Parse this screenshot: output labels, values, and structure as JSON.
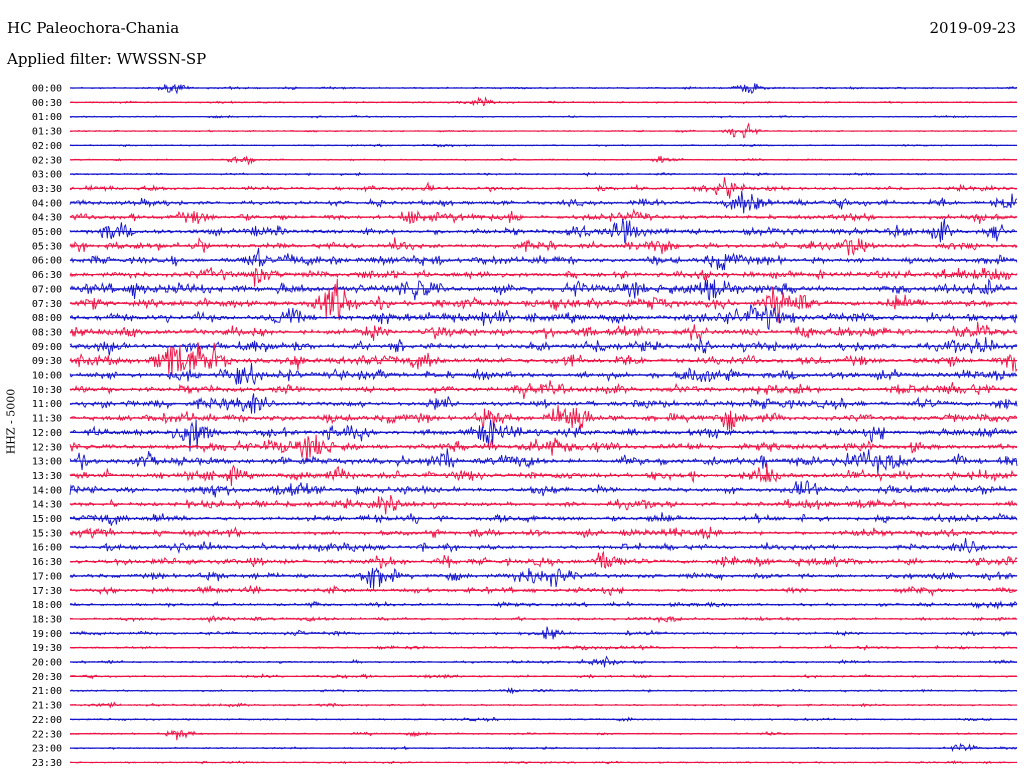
{
  "header": {
    "station": "HC Paleochora-Chania",
    "date": "2019-09-23",
    "filter": "Applied filter: WWSSN-SP"
  },
  "chart_data": {
    "type": "line",
    "title": "HC Paleochora-Chania",
    "subtitle": "Applied filter: WWSSN-SP",
    "ylabel": "HHZ - 5000",
    "colors": {
      "even": "#1414cc",
      "odd": "#ee1144"
    },
    "rows": [
      {
        "time": "00:00",
        "activity": 0.15
      },
      {
        "time": "00:30",
        "activity": 0.15
      },
      {
        "time": "01:00",
        "activity": 0.1
      },
      {
        "time": "01:30",
        "activity": 0.1
      },
      {
        "time": "02:00",
        "activity": 0.1
      },
      {
        "time": "02:30",
        "activity": 0.12
      },
      {
        "time": "03:00",
        "activity": 0.2
      },
      {
        "time": "03:30",
        "activity": 0.45
      },
      {
        "time": "04:00",
        "activity": 0.7
      },
      {
        "time": "04:30",
        "activity": 0.75
      },
      {
        "time": "05:00",
        "activity": 0.8
      },
      {
        "time": "05:30",
        "activity": 0.85
      },
      {
        "time": "06:00",
        "activity": 0.9
      },
      {
        "time": "06:30",
        "activity": 0.95
      },
      {
        "time": "07:00",
        "activity": 1.0
      },
      {
        "time": "07:30",
        "activity": 1.0
      },
      {
        "time": "08:00",
        "activity": 1.0
      },
      {
        "time": "08:30",
        "activity": 0.95
      },
      {
        "time": "09:00",
        "activity": 0.95
      },
      {
        "time": "09:30",
        "activity": 0.95
      },
      {
        "time": "10:00",
        "activity": 0.95
      },
      {
        "time": "10:30",
        "activity": 0.9
      },
      {
        "time": "11:00",
        "activity": 0.9
      },
      {
        "time": "11:30",
        "activity": 0.95
      },
      {
        "time": "12:00",
        "activity": 0.95
      },
      {
        "time": "12:30",
        "activity": 0.95
      },
      {
        "time": "13:00",
        "activity": 0.95
      },
      {
        "time": "13:30",
        "activity": 0.9
      },
      {
        "time": "14:00",
        "activity": 0.85
      },
      {
        "time": "14:30",
        "activity": 0.75
      },
      {
        "time": "15:00",
        "activity": 0.75
      },
      {
        "time": "15:30",
        "activity": 0.75
      },
      {
        "time": "16:00",
        "activity": 0.75
      },
      {
        "time": "16:30",
        "activity": 0.8
      },
      {
        "time": "17:00",
        "activity": 0.75
      },
      {
        "time": "17:30",
        "activity": 0.6
      },
      {
        "time": "18:00",
        "activity": 0.45
      },
      {
        "time": "18:30",
        "activity": 0.4
      },
      {
        "time": "19:00",
        "activity": 0.35
      },
      {
        "time": "19:30",
        "activity": 0.3
      },
      {
        "time": "20:00",
        "activity": 0.25
      },
      {
        "time": "20:30",
        "activity": 0.25
      },
      {
        "time": "21:00",
        "activity": 0.2
      },
      {
        "time": "21:30",
        "activity": 0.2
      },
      {
        "time": "22:00",
        "activity": 0.18
      },
      {
        "time": "22:30",
        "activity": 0.18
      },
      {
        "time": "23:00",
        "activity": 0.15
      },
      {
        "time": "23:30",
        "activity": 0.15
      }
    ],
    "events": [
      {
        "time": "00:00",
        "minute": 13,
        "amp": 0.8
      },
      {
        "time": "00:00",
        "minute": 86,
        "amp": 1.0
      },
      {
        "time": "00:30",
        "minute": 52,
        "amp": 0.7
      },
      {
        "time": "01:30",
        "minute": 85,
        "amp": 1.3
      },
      {
        "time": "02:30",
        "minute": 22,
        "amp": 0.8
      },
      {
        "time": "02:30",
        "minute": 75,
        "amp": 0.5
      },
      {
        "time": "03:30",
        "minute": 83,
        "amp": 1.8
      },
      {
        "time": "04:00",
        "minute": 86,
        "amp": 2.0
      },
      {
        "time": "05:00",
        "minute": 70,
        "amp": 1.6
      },
      {
        "time": "05:00",
        "minute": 64,
        "amp": 1.2
      },
      {
        "time": "06:00",
        "minute": 83,
        "amp": 1.5
      },
      {
        "time": "07:00",
        "minute": 82,
        "amp": 2.0
      },
      {
        "time": "07:00",
        "minute": 44,
        "amp": 1.7
      },
      {
        "time": "07:30",
        "minute": 33,
        "amp": 1.5
      },
      {
        "time": "07:30",
        "minute": 90,
        "amp": 2.2
      },
      {
        "time": "08:00",
        "minute": 88,
        "amp": 1.8
      },
      {
        "time": "09:30",
        "minute": 13,
        "amp": 2.0
      },
      {
        "time": "09:30",
        "minute": 17,
        "amp": 2.0
      },
      {
        "time": "09:30",
        "minute": 120,
        "amp": 1.6
      },
      {
        "time": "10:00",
        "minute": 22,
        "amp": 1.8
      },
      {
        "time": "11:30",
        "minute": 63,
        "amp": 2.2
      },
      {
        "time": "12:00",
        "minute": 16,
        "amp": 1.6
      },
      {
        "time": "12:30",
        "minute": 31,
        "amp": 2.0
      },
      {
        "time": "13:00",
        "minute": 104,
        "amp": 1.6
      },
      {
        "time": "13:30",
        "minute": 88,
        "amp": 1.6
      },
      {
        "time": "14:00",
        "minute": 93,
        "amp": 1.4
      },
      {
        "time": "16:30",
        "minute": 68,
        "amp": 1.6
      },
      {
        "time": "17:00",
        "minute": 39,
        "amp": 1.8
      },
      {
        "time": "19:00",
        "minute": 61,
        "amp": 0.8
      },
      {
        "time": "20:00",
        "minute": 68,
        "amp": 0.7
      },
      {
        "time": "22:30",
        "minute": 14,
        "amp": 0.9
      },
      {
        "time": "23:00",
        "minute": 113,
        "amp": 0.8
      }
    ]
  }
}
